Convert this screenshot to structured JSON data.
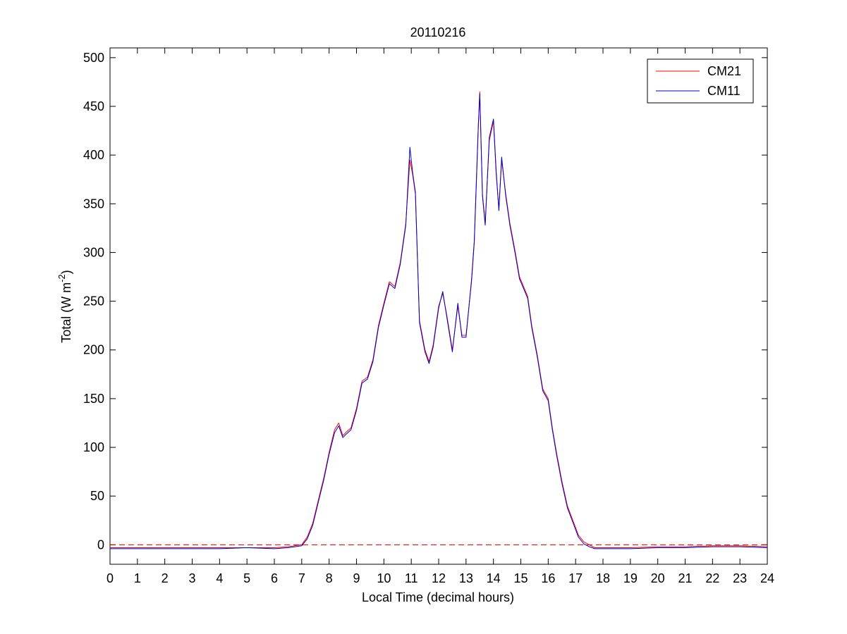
{
  "chart_data": {
    "type": "line",
    "title": "20110216",
    "xlabel": "Local Time (decimal hours)",
    "ylabel": {
      "main": "Total (W m",
      "superscript": "-2",
      "close": ")"
    },
    "xlim": [
      0,
      24
    ],
    "ylim": [
      -20,
      510
    ],
    "x_ticks": [
      0,
      1,
      2,
      3,
      4,
      5,
      6,
      7,
      8,
      9,
      10,
      11,
      12,
      13,
      14,
      15,
      16,
      17,
      18,
      19,
      20,
      21,
      22,
      23,
      24
    ],
    "y_ticks": [
      0,
      50,
      100,
      150,
      200,
      250,
      300,
      350,
      400,
      450,
      500
    ],
    "grid": false,
    "legend_position": "top-right",
    "reference_line": {
      "y": 0,
      "style": "dashed",
      "color": "#cc0000"
    },
    "series": [
      {
        "name": "CM21",
        "color": "#ff0000",
        "x": [
          0,
          1,
          2,
          3,
          4,
          5,
          6,
          6.5,
          7,
          7.2,
          7.4,
          7.6,
          7.8,
          8,
          8.2,
          8.35,
          8.5,
          8.6,
          8.8,
          9,
          9.2,
          9.4,
          9.6,
          9.8,
          10,
          10.2,
          10.4,
          10.6,
          10.8,
          10.95,
          11.05,
          11.15,
          11.3,
          11.5,
          11.65,
          11.8,
          12,
          12.15,
          12.3,
          12.5,
          12.7,
          12.85,
          13,
          13.2,
          13.3,
          13.45,
          13.5,
          13.6,
          13.7,
          13.85,
          14,
          14.1,
          14.2,
          14.3,
          14.45,
          14.6,
          14.8,
          14.95,
          15.1,
          15.25,
          15.4,
          15.6,
          15.8,
          16,
          16.15,
          16.3,
          16.5,
          16.7,
          16.9,
          17.1,
          17.3,
          17.5,
          17.7,
          17.9,
          18,
          19,
          20,
          21,
          22,
          23,
          24
        ],
        "values": [
          -3,
          -3,
          -3,
          -3,
          -3,
          -3,
          -3,
          -2,
          0,
          8,
          22,
          45,
          68,
          95,
          118,
          125,
          112,
          115,
          120,
          140,
          168,
          172,
          190,
          225,
          248,
          270,
          265,
          290,
          330,
          395,
          380,
          360,
          230,
          200,
          188,
          205,
          245,
          258,
          235,
          200,
          245,
          215,
          215,
          270,
          310,
          430,
          465,
          360,
          330,
          415,
          435,
          380,
          345,
          395,
          360,
          330,
          300,
          275,
          265,
          255,
          225,
          195,
          160,
          150,
          120,
          95,
          65,
          40,
          25,
          10,
          3,
          0,
          -3,
          -3,
          -3,
          -3,
          -2,
          -2,
          -1,
          -1,
          -2
        ]
      },
      {
        "name": "CM11",
        "color": "#0000cc",
        "x": [
          0,
          1,
          2,
          3,
          4,
          5,
          6,
          6.5,
          7,
          7.2,
          7.4,
          7.6,
          7.8,
          8,
          8.2,
          8.35,
          8.5,
          8.6,
          8.8,
          9,
          9.2,
          9.4,
          9.6,
          9.8,
          10,
          10.2,
          10.4,
          10.6,
          10.8,
          10.95,
          11.05,
          11.15,
          11.3,
          11.5,
          11.65,
          11.8,
          12,
          12.15,
          12.3,
          12.5,
          12.7,
          12.85,
          13,
          13.2,
          13.3,
          13.45,
          13.5,
          13.6,
          13.7,
          13.85,
          14,
          14.1,
          14.2,
          14.3,
          14.45,
          14.6,
          14.8,
          14.95,
          15.1,
          15.25,
          15.4,
          15.6,
          15.8,
          16,
          16.15,
          16.3,
          16.5,
          16.7,
          16.9,
          17.1,
          17.3,
          17.5,
          17.7,
          17.9,
          18,
          19,
          20,
          21,
          22,
          23,
          24
        ],
        "values": [
          -4,
          -4,
          -4,
          -4,
          -4,
          -3,
          -4,
          -3,
          -1,
          6,
          20,
          43,
          66,
          93,
          115,
          122,
          110,
          113,
          118,
          138,
          166,
          170,
          188,
          223,
          246,
          268,
          263,
          288,
          328,
          408,
          382,
          362,
          228,
          198,
          186,
          203,
          243,
          260,
          233,
          198,
          248,
          213,
          213,
          272,
          312,
          432,
          463,
          358,
          328,
          418,
          437,
          383,
          343,
          398,
          358,
          328,
          298,
          273,
          263,
          253,
          223,
          193,
          158,
          148,
          118,
          93,
          63,
          38,
          23,
          8,
          1,
          -2,
          -4,
          -4,
          -4,
          -4,
          -3,
          -3,
          -2,
          -2,
          -3
        ]
      }
    ]
  }
}
